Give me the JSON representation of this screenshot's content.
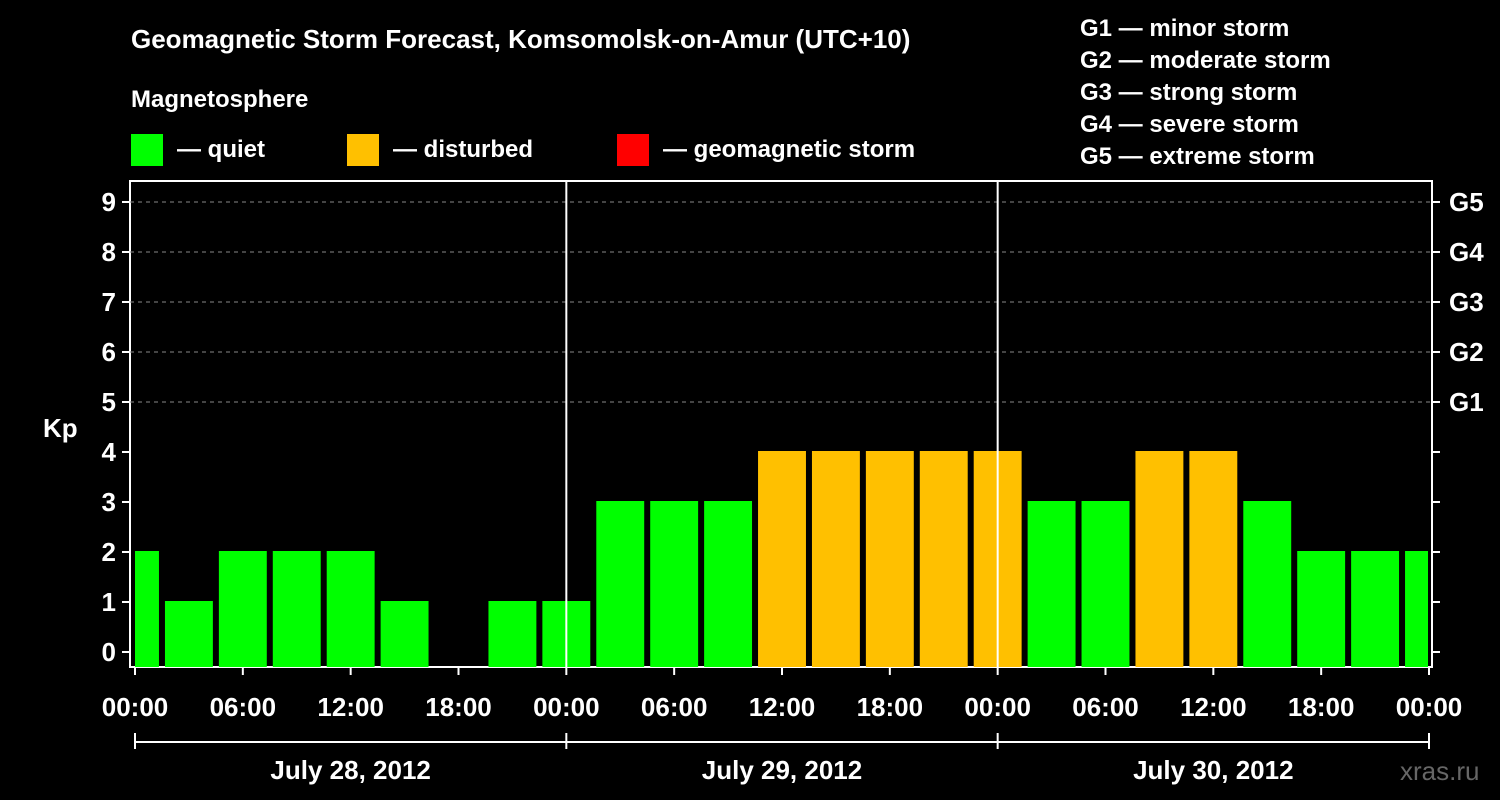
{
  "title": "Geomagnetic Storm Forecast, Komsomolsk-on-Amur (UTC+10)",
  "legend": {
    "heading": "Magnetosphere",
    "items": [
      {
        "label": "— quiet",
        "color": "#00ff00"
      },
      {
        "label": "— disturbed",
        "color": "#ffc000"
      },
      {
        "label": "— geomagnetic storm",
        "color": "#ff0000"
      }
    ]
  },
  "g_scale": [
    "G1 — minor storm",
    "G2 — moderate storm",
    "G3 — strong storm",
    "G4 — severe storm",
    "G5 — extreme storm"
  ],
  "watermark": "xras.ru",
  "chart_data": {
    "type": "bar",
    "ylabel": "Kp",
    "ylim": [
      0,
      9
    ],
    "y_ticks": [
      "0",
      "1",
      "2",
      "3",
      "4",
      "5",
      "6",
      "7",
      "8",
      "9"
    ],
    "right_ticks": [
      {
        "kp": 5,
        "label": "G1"
      },
      {
        "kp": 6,
        "label": "G2"
      },
      {
        "kp": 7,
        "label": "G3"
      },
      {
        "kp": 8,
        "label": "G4"
      },
      {
        "kp": 9,
        "label": "G5"
      }
    ],
    "grid": "horizontal dashed at Kp 5-9",
    "x_tick_labels": [
      "00:00",
      "06:00",
      "12:00",
      "18:00",
      "00:00",
      "06:00",
      "12:00",
      "18:00",
      "00:00",
      "06:00",
      "12:00",
      "18:00",
      "00:00"
    ],
    "days": [
      "July 28, 2012",
      "July 29, 2012",
      "July 30, 2012"
    ],
    "interval_hours": 3,
    "values": [
      2,
      1,
      2,
      2,
      2,
      1,
      0,
      1,
      1,
      3,
      3,
      3,
      4,
      4,
      4,
      4,
      4,
      3,
      3,
      4,
      4,
      3,
      2,
      2,
      2
    ],
    "level_colors": {
      "quiet": "#00ff00",
      "disturbed": "#ffc000",
      "storm": "#ff0000"
    }
  }
}
